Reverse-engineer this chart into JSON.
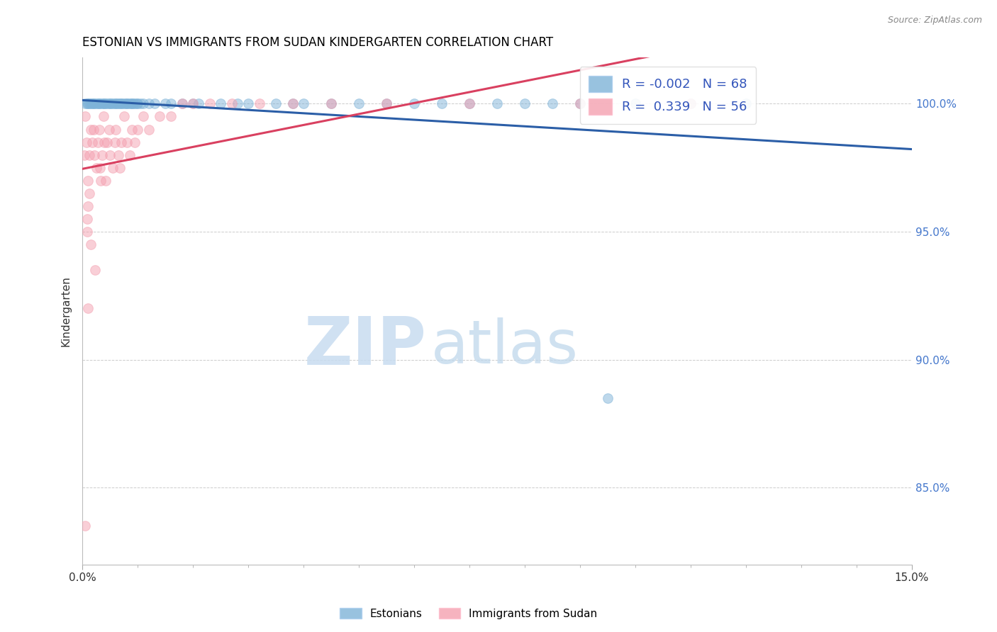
{
  "title": "ESTONIAN VS IMMIGRANTS FROM SUDAN KINDERGARTEN CORRELATION CHART",
  "source_text": "Source: ZipAtlas.com",
  "ylabel": "Kindergarten",
  "xlim": [
    0.0,
    15.0
  ],
  "ylim": [
    82.0,
    101.8
  ],
  "yticks": [
    85.0,
    90.0,
    95.0,
    100.0
  ],
  "ytick_labels": [
    "85.0%",
    "90.0%",
    "95.0%",
    "100.0%"
  ],
  "xticks": [
    0.0,
    15.0
  ],
  "xtick_labels": [
    "0.0%",
    "15.0%"
  ],
  "R_blue": -0.002,
  "N_blue": 68,
  "R_pink": 0.339,
  "N_pink": 56,
  "legend_label_blue": "Estonians",
  "legend_label_pink": "Immigrants from Sudan",
  "blue_color": "#7EB3D8",
  "pink_color": "#F4A0B0",
  "blue_line_color": "#2B5EA7",
  "pink_line_color": "#D94060",
  "watermark_zip_color": "#C8DCF0",
  "watermark_atlas_color": "#C0D8EC",
  "background_color": "#FFFFFF",
  "title_fontsize": 12,
  "axis_label_fontsize": 11,
  "tick_fontsize": 11,
  "legend_fontsize": 13,
  "marker_size": 9,
  "blue_points_x": [
    0.05,
    0.08,
    0.1,
    0.12,
    0.15,
    0.18,
    0.2,
    0.22,
    0.25,
    0.28,
    0.3,
    0.32,
    0.35,
    0.38,
    0.4,
    0.42,
    0.45,
    0.48,
    0.5,
    0.52,
    0.55,
    0.58,
    0.6,
    0.62,
    0.65,
    0.68,
    0.7,
    0.72,
    0.75,
    0.78,
    0.8,
    0.82,
    0.85,
    0.88,
    0.9,
    0.92,
    0.95,
    0.98,
    1.0,
    1.05,
    1.1,
    1.2,
    1.3,
    1.5,
    1.8,
    2.1,
    2.5,
    3.0,
    3.5,
    4.0,
    5.0,
    6.0,
    7.0,
    7.5,
    8.0,
    9.0,
    10.0,
    11.0,
    12.0,
    1.6,
    2.0,
    2.8,
    3.8,
    4.5,
    5.5,
    6.5,
    8.5,
    9.5
  ],
  "blue_points_y": [
    100.0,
    100.0,
    100.0,
    100.0,
    100.0,
    100.0,
    100.0,
    100.0,
    100.0,
    100.0,
    100.0,
    100.0,
    100.0,
    100.0,
    100.0,
    100.0,
    100.0,
    100.0,
    100.0,
    100.0,
    100.0,
    100.0,
    100.0,
    100.0,
    100.0,
    100.0,
    100.0,
    100.0,
    100.0,
    100.0,
    100.0,
    100.0,
    100.0,
    100.0,
    100.0,
    100.0,
    100.0,
    100.0,
    100.0,
    100.0,
    100.0,
    100.0,
    100.0,
    100.0,
    100.0,
    100.0,
    100.0,
    100.0,
    100.0,
    100.0,
    100.0,
    100.0,
    100.0,
    100.0,
    100.0,
    100.0,
    100.0,
    100.0,
    100.0,
    100.0,
    100.0,
    100.0,
    100.0,
    100.0,
    100.0,
    100.0,
    100.0,
    88.5
  ],
  "pink_points_x": [
    0.03,
    0.05,
    0.07,
    0.1,
    0.12,
    0.15,
    0.18,
    0.2,
    0.22,
    0.25,
    0.28,
    0.3,
    0.32,
    0.35,
    0.38,
    0.4,
    0.42,
    0.45,
    0.48,
    0.5,
    0.55,
    0.6,
    0.65,
    0.7,
    0.75,
    0.8,
    0.85,
    0.9,
    0.95,
    1.0,
    1.1,
    1.2,
    1.4,
    1.6,
    1.8,
    2.0,
    2.3,
    2.7,
    3.2,
    3.8,
    0.08,
    0.13,
    0.33,
    0.58,
    0.68,
    4.5,
    5.5,
    7.0,
    9.0,
    11.0,
    0.23,
    0.15,
    0.1,
    0.08,
    0.05,
    0.1
  ],
  "pink_points_y": [
    98.0,
    99.5,
    98.5,
    97.0,
    98.0,
    99.0,
    98.5,
    99.0,
    98.0,
    97.5,
    98.5,
    99.0,
    97.5,
    98.0,
    99.5,
    98.5,
    97.0,
    98.5,
    99.0,
    98.0,
    97.5,
    99.0,
    98.0,
    98.5,
    99.5,
    98.5,
    98.0,
    99.0,
    98.5,
    99.0,
    99.5,
    99.0,
    99.5,
    99.5,
    100.0,
    100.0,
    100.0,
    100.0,
    100.0,
    100.0,
    95.5,
    96.5,
    97.0,
    98.5,
    97.5,
    100.0,
    100.0,
    100.0,
    100.0,
    100.0,
    93.5,
    94.5,
    96.0,
    95.0,
    83.5,
    92.0
  ]
}
